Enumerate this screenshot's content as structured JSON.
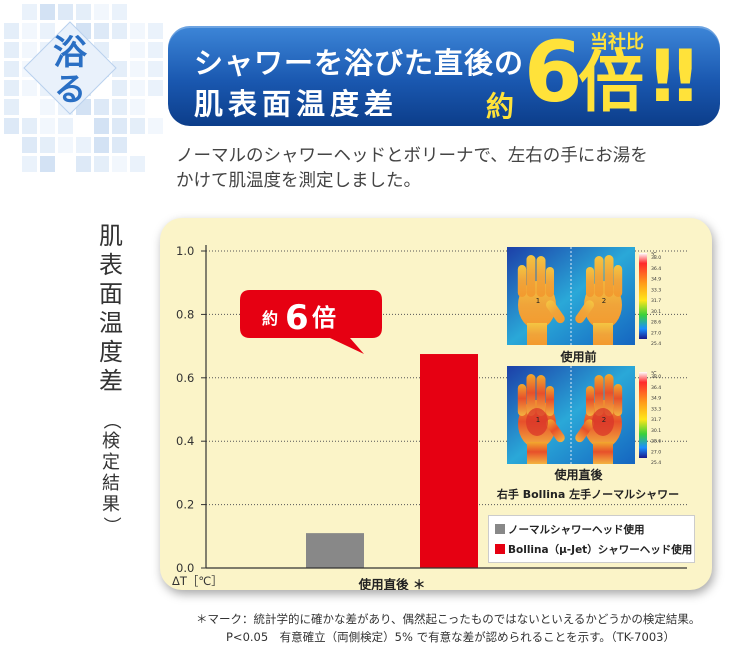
{
  "badge": {
    "char_top": "浴",
    "char_bottom": "る"
  },
  "banner": {
    "line1": "シャワーを浴びた直後の",
    "line2": "肌表面温度差",
    "yaku": "約",
    "big_number": "6",
    "big_unit": "倍",
    "exclaim": "!!",
    "comparison": "当社比"
  },
  "description": {
    "line1": "ノーマルのシャワーヘッドとボリーナで、左右の手にお湯を",
    "line2": "かけて肌温度を測定しました。"
  },
  "y_title": {
    "main": "肌表面温度差",
    "sub": "（検定結果）"
  },
  "callout": {
    "yaku": "約",
    "number": "6",
    "unit": "倍"
  },
  "thermal": {
    "before_label": "使用前",
    "after_label": "使用直後",
    "caption": "右手 Bollina 左手ノーマルシャワー",
    "scale_unit": "℃",
    "scale_values": [
      "38.0",
      "36.4",
      "34.9",
      "33.3",
      "31.7",
      "30.1",
      "28.6",
      "27.0",
      "25.4"
    ],
    "hand_marks": [
      "1",
      "2"
    ]
  },
  "footnote": {
    "line1": "＊マーク：統計学的に確かな差があり、偶然起こったものではないといえるかどうかの検定結果。",
    "line2": "P<0.05　有意確立（両側検定）5% で有意な差が認められることを示す。（TK-7003）"
  },
  "chart_data": {
    "type": "bar",
    "categories": [
      "使用直後 ＊"
    ],
    "series": [
      {
        "name": "ノーマルシャワーヘッド使用",
        "values": [
          0.11
        ],
        "color": "#888888"
      },
      {
        "name": "Bollina（μ-Jet）シャワーヘッド使用",
        "values": [
          0.675
        ],
        "color": "#e60012"
      }
    ],
    "xlabel": "ΔT［℃］",
    "ylabel": "肌表面温度差（検定結果）",
    "ylim": [
      0,
      1.0
    ],
    "yticks": [
      "0.0",
      "0.2",
      "0.4",
      "0.6",
      "0.8",
      "1.0"
    ],
    "grid": true,
    "legend_position": "bottom-right"
  },
  "colors": {
    "banner_blue": "#1a58b0",
    "accent_yellow": "#ffe23a",
    "panel_bg": "#fbf4c8",
    "bollina_red": "#e60012",
    "normal_gray": "#888888"
  }
}
